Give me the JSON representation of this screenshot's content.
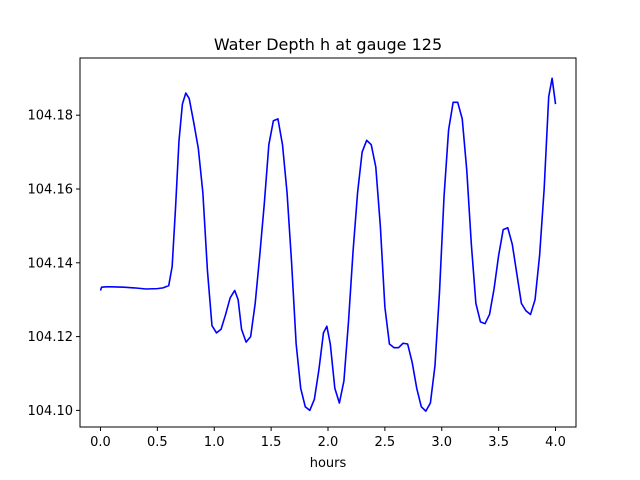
{
  "chart_data": {
    "type": "line",
    "title": "Water Depth h at gauge 125",
    "xlabel": "hours",
    "ylabel": "",
    "xlim": [
      -0.18,
      4.18
    ],
    "ylim": [
      104.0955,
      104.1955
    ],
    "xticks": [
      0.0,
      0.5,
      1.0,
      1.5,
      2.0,
      2.5,
      3.0,
      3.5,
      4.0
    ],
    "xtick_labels": [
      "0.0",
      "0.5",
      "1.0",
      "1.5",
      "2.0",
      "2.5",
      "3.0",
      "3.5",
      "4.0"
    ],
    "yticks": [
      104.1,
      104.12,
      104.14,
      104.16,
      104.18
    ],
    "ytick_labels": [
      "104.10",
      "104.12",
      "104.14",
      "104.16",
      "104.18"
    ],
    "grid": false,
    "series": [
      {
        "color": "#0000ff",
        "x": [
          0.0,
          0.01,
          0.05,
          0.1,
          0.2,
          0.3,
          0.4,
          0.5,
          0.55,
          0.6,
          0.63,
          0.66,
          0.69,
          0.72,
          0.75,
          0.78,
          0.82,
          0.86,
          0.9,
          0.94,
          0.98,
          1.02,
          1.06,
          1.1,
          1.14,
          1.18,
          1.21,
          1.24,
          1.28,
          1.32,
          1.36,
          1.4,
          1.44,
          1.48,
          1.52,
          1.56,
          1.6,
          1.64,
          1.68,
          1.72,
          1.76,
          1.8,
          1.84,
          1.88,
          1.92,
          1.96,
          1.99,
          2.02,
          2.06,
          2.1,
          2.14,
          2.18,
          2.22,
          2.26,
          2.3,
          2.34,
          2.38,
          2.42,
          2.46,
          2.5,
          2.54,
          2.58,
          2.62,
          2.66,
          2.7,
          2.74,
          2.78,
          2.82,
          2.86,
          2.9,
          2.94,
          2.98,
          3.02,
          3.06,
          3.1,
          3.14,
          3.18,
          3.22,
          3.26,
          3.3,
          3.34,
          3.38,
          3.42,
          3.46,
          3.5,
          3.54,
          3.58,
          3.62,
          3.66,
          3.7,
          3.74,
          3.78,
          3.82,
          3.86,
          3.9,
          3.94,
          3.97,
          4.0
        ],
        "y": [
          104.1325,
          104.1334,
          104.1335,
          104.1335,
          104.1334,
          104.1332,
          104.1329,
          104.133,
          104.1332,
          104.1338,
          104.139,
          104.155,
          104.173,
          104.183,
          104.186,
          104.1845,
          104.178,
          104.171,
          104.159,
          104.138,
          104.123,
          104.121,
          104.122,
          104.126,
          104.1305,
          104.1325,
          104.13,
          104.122,
          104.1185,
          104.12,
          104.129,
          104.142,
          104.156,
          104.172,
          104.1785,
          104.179,
          104.172,
          104.159,
          104.14,
          104.118,
          104.106,
          104.101,
          104.1,
          104.103,
          104.111,
          104.121,
          104.1228,
          104.118,
          104.106,
          104.102,
          104.108,
          104.124,
          104.143,
          104.159,
          104.17,
          104.1732,
          104.172,
          104.166,
          104.15,
          104.128,
          104.118,
          104.117,
          104.117,
          104.1182,
          104.118,
          104.113,
          104.106,
          104.101,
          104.0998,
          104.102,
          104.112,
          104.132,
          104.158,
          104.176,
          104.1835,
          104.1835,
          104.179,
          104.165,
          104.145,
          104.129,
          104.124,
          104.1235,
          104.126,
          104.133,
          104.142,
          104.149,
          104.1495,
          104.145,
          104.137,
          104.129,
          104.127,
          104.126,
          104.13,
          104.142,
          104.16,
          104.185,
          104.19,
          104.183
        ]
      }
    ]
  }
}
